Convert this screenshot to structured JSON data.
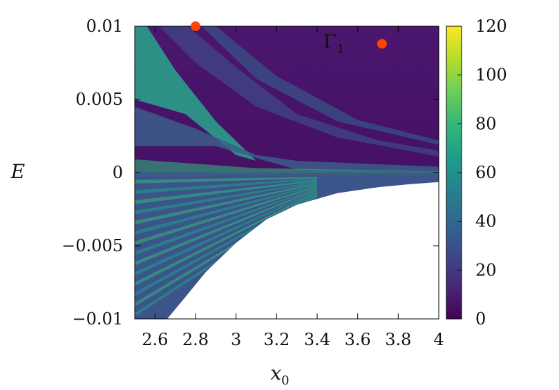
{
  "chart_data": {
    "type": "heatmap",
    "xlabel": "x",
    "xlabel_sub": "0",
    "ylabel": "E",
    "xlim": [
      2.5,
      4.0
    ],
    "ylim": [
      -0.01,
      0.01
    ],
    "x_ticks": [
      {
        "value": 2.6,
        "label": "2.6"
      },
      {
        "value": 2.8,
        "label": "2.8"
      },
      {
        "value": 3.0,
        "label": "3"
      },
      {
        "value": 3.2,
        "label": "3.2"
      },
      {
        "value": 3.4,
        "label": "3.4"
      },
      {
        "value": 3.6,
        "label": "3.6"
      },
      {
        "value": 3.8,
        "label": "3.8"
      },
      {
        "value": 4.0,
        "label": "4"
      }
    ],
    "y_ticks": [
      {
        "value": 0.01,
        "label": "0.01"
      },
      {
        "value": 0.005,
        "label": "0.005"
      },
      {
        "value": 0.0,
        "label": "0"
      },
      {
        "value": -0.005,
        "label": "−0.005"
      },
      {
        "value": -0.01,
        "label": "−0.01"
      }
    ],
    "colorbar": {
      "range": [
        0,
        120
      ],
      "ticks": [
        {
          "value": 0,
          "label": "0"
        },
        {
          "value": 20,
          "label": "20"
        },
        {
          "value": 40,
          "label": "40"
        },
        {
          "value": 60,
          "label": "60"
        },
        {
          "value": 80,
          "label": "80"
        },
        {
          "value": 100,
          "label": "100"
        },
        {
          "value": 120,
          "label": "120"
        }
      ],
      "colormap": [
        "#440154",
        "#482878",
        "#3e4989",
        "#31688e",
        "#26828e",
        "#1f9e89",
        "#35b779",
        "#6ece58",
        "#b5de2b",
        "#fde725"
      ]
    },
    "boundary_curve": [
      [
        2.5,
        -0.01
      ],
      [
        2.66,
        -0.01
      ],
      [
        2.75,
        -0.0085
      ],
      [
        2.85,
        -0.0068
      ],
      [
        3.0,
        -0.0048
      ],
      [
        3.15,
        -0.0032
      ],
      [
        3.3,
        -0.0022
      ],
      [
        3.5,
        -0.0014
      ],
      [
        3.7,
        -0.001
      ],
      [
        3.85,
        -0.0008
      ],
      [
        4.0,
        -0.00065
      ]
    ],
    "points": [
      {
        "x": 2.8,
        "y": 0.01,
        "color": "#ff4500"
      },
      {
        "x": 3.72,
        "y": 0.0088,
        "color": "#ff4500"
      }
    ],
    "annotation": {
      "text": "Γ",
      "sub": "1",
      "x": 3.43,
      "y": 0.0085
    }
  }
}
